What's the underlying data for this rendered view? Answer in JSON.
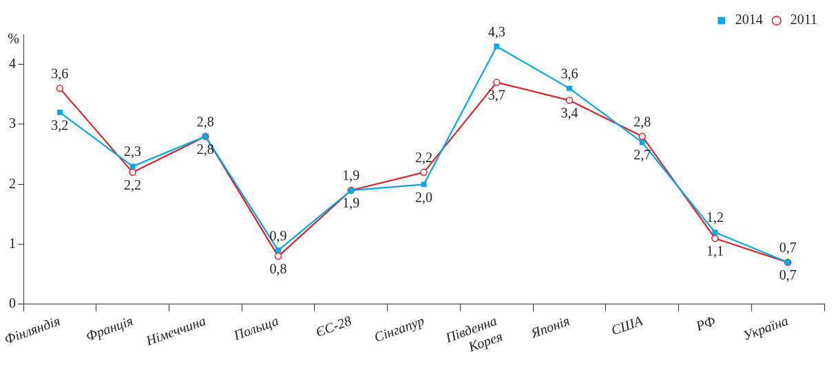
{
  "chart_data": {
    "type": "line",
    "ylabel": "%",
    "categories": [
      "Фінляндія",
      "Франція",
      "Німеччина",
      "Польща",
      "ЄС-28",
      "Сінгапур",
      "Південна Корея",
      "Японія",
      "США",
      "РФ",
      "Україна"
    ],
    "series": [
      {
        "name": "2011",
        "color": "#e41e26",
        "marker": "circle",
        "values": [
          3.6,
          2.2,
          2.8,
          0.8,
          1.9,
          2.2,
          3.7,
          3.4,
          2.8,
          1.1,
          0.7
        ],
        "value_labels": [
          "3,6",
          "2,2",
          "2,8",
          "0,8",
          "1,9",
          "2,2",
          "3,7",
          "3,4",
          "2,8",
          "1,1",
          "0,7"
        ]
      },
      {
        "name": "2014",
        "color": "#00a9e6",
        "marker": "square",
        "values": [
          3.2,
          2.3,
          2.8,
          0.9,
          1.9,
          2.0,
          4.3,
          3.6,
          2.7,
          1.2,
          0.7
        ],
        "value_labels": [
          "3,2",
          "2,3",
          "2,8",
          "0,9",
          "1,9",
          "2,0",
          "4,3",
          "3,6",
          "2,7",
          "1,2",
          "0,7"
        ]
      }
    ],
    "ylim": [
      0,
      4.5
    ],
    "yticks": [
      0,
      1,
      2,
      3,
      4
    ],
    "grid": false,
    "legend": "top right",
    "line_style": "solid"
  }
}
